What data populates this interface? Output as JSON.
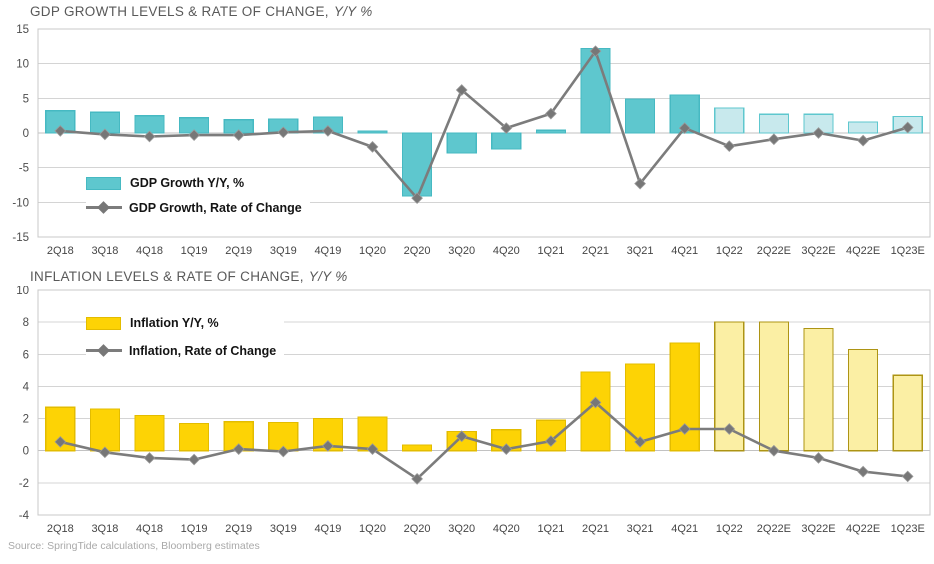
{
  "page": {
    "source_note": "Source: SpringTide calculations, Bloomberg estimates"
  },
  "chart_data": [
    {
      "type": "bar",
      "subtype": "bar+line combo",
      "title_main": "GDP GROWTH LEVELS & RATE OF CHANGE,",
      "title_italic": "Y/Y %",
      "categories": [
        "2Q18",
        "3Q18",
        "4Q18",
        "1Q19",
        "2Q19",
        "3Q19",
        "4Q19",
        "1Q20",
        "2Q20",
        "3Q20",
        "4Q20",
        "1Q21",
        "2Q21",
        "3Q21",
        "4Q21",
        "1Q22",
        "2Q22E",
        "3Q22E",
        "4Q22E",
        "1Q23E"
      ],
      "series": [
        {
          "name": "GDP Growth Y/Y, %",
          "type": "bar",
          "values": [
            3.2,
            3.0,
            2.5,
            2.2,
            1.9,
            2.0,
            2.3,
            0.3,
            -9.1,
            -2.9,
            -2.3,
            0.4,
            12.2,
            4.9,
            5.5,
            3.6,
            2.7,
            2.7,
            1.6,
            2.4
          ]
        },
        {
          "name": "GDP Growth, Rate of Change",
          "type": "line",
          "values": [
            0.3,
            -0.2,
            -0.5,
            -0.3,
            -0.3,
            0.1,
            0.3,
            -2.0,
            -9.4,
            6.2,
            0.7,
            2.8,
            11.8,
            -7.3,
            0.7,
            -1.9,
            -0.9,
            0.0,
            -1.1,
            0.8
          ]
        }
      ],
      "ylim": [
        -15,
        15
      ],
      "yticks": [
        15,
        10,
        5,
        0,
        -5,
        -10,
        -15
      ],
      "estimate_start_index": 15,
      "grid": true,
      "legend_position": "inside-left",
      "style": {
        "bar_fill": "#5EC7CE",
        "bar_stroke": "#46B9C2",
        "bar_estimate_fill": "#C8E9ED",
        "bar_estimate_stroke": "#5EC7CE",
        "line_color": "#7C7C7C",
        "marker_color": "#777777"
      }
    },
    {
      "type": "bar",
      "subtype": "bar+line combo",
      "title_main": "INFLATION LEVELS & RATE OF CHANGE,",
      "title_italic": "Y/Y %",
      "categories": [
        "2Q18",
        "3Q18",
        "4Q18",
        "1Q19",
        "2Q19",
        "3Q19",
        "4Q19",
        "1Q20",
        "2Q20",
        "3Q20",
        "4Q20",
        "1Q21",
        "2Q21",
        "3Q21",
        "4Q21",
        "1Q22",
        "2Q22E",
        "3Q22E",
        "4Q22E",
        "1Q23E"
      ],
      "series": [
        {
          "name": "Inflation Y/Y, %",
          "type": "bar",
          "values": [
            2.7,
            2.6,
            2.2,
            1.7,
            1.8,
            1.75,
            2.0,
            2.1,
            0.35,
            1.2,
            1.3,
            1.9,
            4.9,
            5.4,
            6.7,
            8.0,
            8.0,
            7.6,
            6.3,
            4.7
          ]
        },
        {
          "name": "Inflation, Rate of Change",
          "type": "line",
          "values": [
            0.55,
            -0.1,
            -0.45,
            -0.55,
            0.1,
            -0.05,
            0.3,
            0.1,
            -1.75,
            0.9,
            0.1,
            0.6,
            3.0,
            0.55,
            1.35,
            1.35,
            0.0,
            -0.45,
            -1.3,
            -1.6
          ]
        }
      ],
      "ylim": [
        -4,
        10
      ],
      "yticks": [
        10,
        8,
        6,
        4,
        2,
        0,
        -2,
        -4
      ],
      "estimate_start_index": 15,
      "grid": true,
      "legend_position": "inside-left",
      "style": {
        "bar_fill": "#FDD305",
        "bar_stroke": "#E3BC00",
        "bar_estimate_fill": "#FBEFA4",
        "bar_estimate_stroke": "#AD9414",
        "line_color": "#7C7C7C",
        "marker_color": "#777777"
      }
    }
  ]
}
